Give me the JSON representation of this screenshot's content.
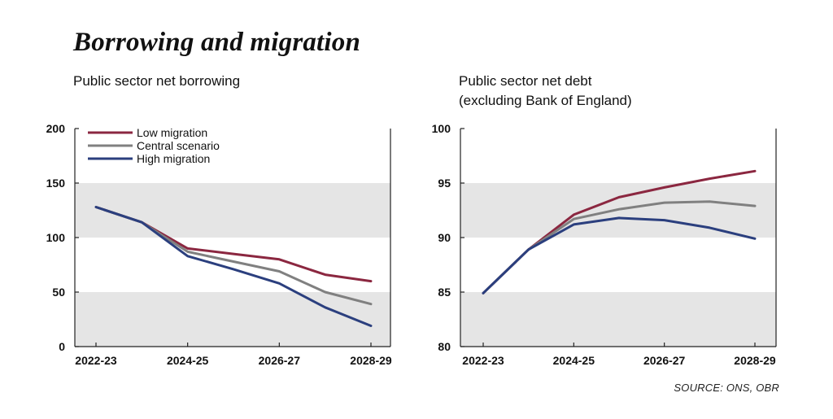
{
  "header": {
    "title": "Borrowing and migration"
  },
  "source": "SOURCE: ONS, OBR",
  "colors": {
    "low": "#8b2740",
    "central": "#808080",
    "high": "#2b3f7e",
    "band": "#e5e5e5"
  },
  "chart_data": [
    {
      "type": "line",
      "title": "Public sector net borrowing",
      "title_lines": [
        "Public sector net borrowing"
      ],
      "x": [
        "2022-23",
        "2023-24",
        "2024-25",
        "2025-26",
        "2026-27",
        "2027-28",
        "2028-29"
      ],
      "xticks": [
        "2022-23",
        "2024-25",
        "2026-27",
        "2028-29"
      ],
      "ylim": [
        0,
        200
      ],
      "yticks": [
        0,
        50,
        100,
        150,
        200
      ],
      "shaded_bands": [
        [
          0,
          50
        ],
        [
          100,
          150
        ]
      ],
      "legend": "top-left",
      "series": [
        {
          "name": "Low migration",
          "color_key": "low",
          "values": [
            128,
            114,
            90,
            85,
            80,
            66,
            60
          ]
        },
        {
          "name": "Central scenario",
          "color_key": "central",
          "values": [
            128,
            114,
            87,
            78,
            69,
            50,
            39
          ]
        },
        {
          "name": "High migration",
          "color_key": "high",
          "values": [
            128,
            114,
            83,
            71,
            58,
            36,
            19
          ]
        }
      ]
    },
    {
      "type": "line",
      "title": "Public sector net debt (excluding Bank of England)",
      "title_lines": [
        "Public sector net debt",
        "(excluding Bank of England)"
      ],
      "x": [
        "2022-23",
        "2023-24",
        "2024-25",
        "2025-26",
        "2026-27",
        "2027-28",
        "2028-29"
      ],
      "xticks": [
        "2022-23",
        "2024-25",
        "2026-27",
        "2028-29"
      ],
      "ylim": [
        80,
        100
      ],
      "yticks": [
        80,
        85,
        90,
        95,
        100
      ],
      "shaded_bands": [
        [
          80,
          85
        ],
        [
          90,
          95
        ]
      ],
      "legend": "none",
      "series": [
        {
          "name": "Low migration",
          "color_key": "low",
          "values": [
            84.9,
            88.9,
            92.1,
            93.7,
            94.6,
            95.4,
            96.1
          ]
        },
        {
          "name": "Central scenario",
          "color_key": "central",
          "values": [
            84.9,
            88.9,
            91.7,
            92.6,
            93.2,
            93.3,
            92.9
          ]
        },
        {
          "name": "High migration",
          "color_key": "high",
          "values": [
            84.9,
            88.9,
            91.2,
            91.8,
            91.6,
            90.9,
            89.9
          ]
        }
      ]
    }
  ]
}
